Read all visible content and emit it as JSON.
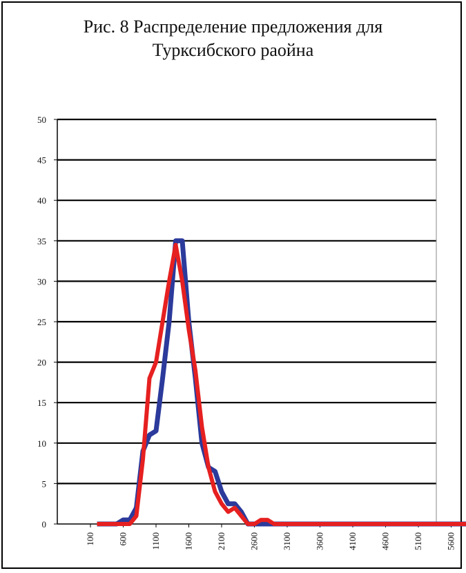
{
  "chart_data": {
    "type": "line",
    "title_line1": "Рис. 8 Распределение предложения для",
    "title_line2": "Турксибского раойна",
    "xlabel": "",
    "ylabel": "",
    "ylim": [
      0,
      50
    ],
    "yticks": [
      0,
      5,
      10,
      15,
      20,
      25,
      30,
      35,
      40,
      45,
      50
    ],
    "xlim": [
      200,
      6000
    ],
    "xticks": [
      100,
      600,
      1100,
      1600,
      2100,
      2600,
      3100,
      3600,
      4100,
      4600,
      5100,
      5600
    ],
    "grid": true,
    "legend": "none",
    "series": [
      {
        "color": "#2b3a9b",
        "points": [
          [
            200,
            0
          ],
          [
            300,
            0
          ],
          [
            400,
            0
          ],
          [
            500,
            0
          ],
          [
            600,
            0.5
          ],
          [
            700,
            0.5
          ],
          [
            800,
            2
          ],
          [
            900,
            9
          ],
          [
            1000,
            11
          ],
          [
            1100,
            11.5
          ],
          [
            1200,
            18
          ],
          [
            1300,
            25
          ],
          [
            1400,
            35
          ],
          [
            1500,
            35
          ],
          [
            1600,
            25
          ],
          [
            1700,
            18
          ],
          [
            1800,
            10
          ],
          [
            1900,
            7
          ],
          [
            2000,
            6.5
          ],
          [
            2100,
            4
          ],
          [
            2200,
            2.5
          ],
          [
            2300,
            2.5
          ],
          [
            2400,
            1.5
          ],
          [
            2500,
            0
          ],
          [
            2600,
            0
          ],
          [
            2700,
            0
          ],
          [
            2800,
            0
          ],
          [
            2900,
            0
          ],
          [
            3000,
            0
          ],
          [
            3500,
            0
          ],
          [
            4000,
            0
          ],
          [
            4500,
            0
          ],
          [
            5000,
            0
          ],
          [
            5500,
            0
          ],
          [
            6000,
            0
          ]
        ]
      },
      {
        "color": "#e62020",
        "points": [
          [
            200,
            0
          ],
          [
            300,
            0
          ],
          [
            400,
            0
          ],
          [
            500,
            0
          ],
          [
            600,
            0
          ],
          [
            700,
            0
          ],
          [
            800,
            1
          ],
          [
            900,
            8
          ],
          [
            1000,
            18
          ],
          [
            1100,
            20
          ],
          [
            1200,
            25
          ],
          [
            1300,
            30
          ],
          [
            1400,
            34.5
          ],
          [
            1500,
            30
          ],
          [
            1600,
            24
          ],
          [
            1700,
            19
          ],
          [
            1800,
            12
          ],
          [
            1900,
            7
          ],
          [
            2000,
            4
          ],
          [
            2100,
            2.5
          ],
          [
            2200,
            1.5
          ],
          [
            2300,
            2
          ],
          [
            2400,
            1
          ],
          [
            2500,
            0
          ],
          [
            2600,
            0
          ],
          [
            2700,
            0.5
          ],
          [
            2800,
            0.5
          ],
          [
            2900,
            0
          ],
          [
            3000,
            0
          ],
          [
            3500,
            0
          ],
          [
            4000,
            0
          ],
          [
            4500,
            0
          ],
          [
            5000,
            0
          ],
          [
            5500,
            0
          ],
          [
            6000,
            0
          ]
        ]
      }
    ]
  }
}
